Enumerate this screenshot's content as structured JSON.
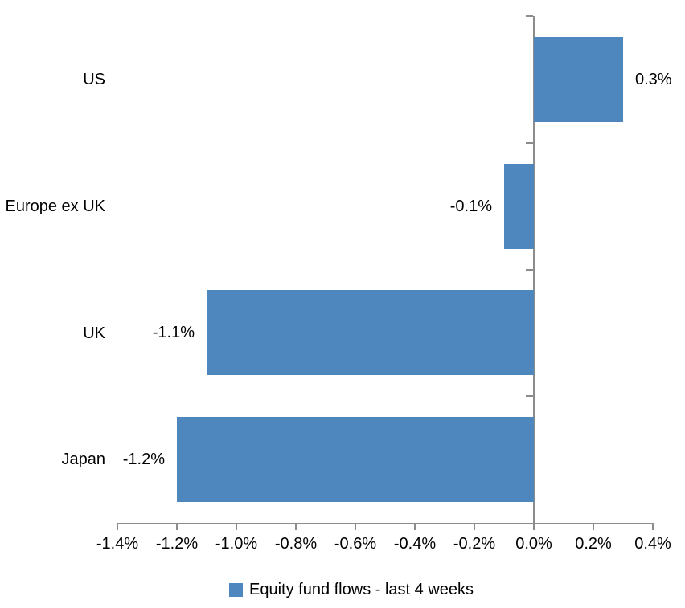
{
  "chart_data": {
    "type": "bar",
    "orientation": "horizontal",
    "title": "",
    "xlabel": "",
    "ylabel": "",
    "categories": [
      "US",
      "Europe ex UK",
      "UK",
      "Japan"
    ],
    "values": [
      0.3,
      -0.1,
      -1.1,
      -1.2
    ],
    "data_labels": [
      "0.3%",
      "-0.1%",
      "-1.1%",
      "-1.2%"
    ],
    "x_axis": {
      "min": -1.4,
      "max": 0.4,
      "step": 0.2,
      "tick_labels": [
        "-1.4%",
        "-1.2%",
        "-1.0%",
        "-0.8%",
        "-0.6%",
        "-0.4%",
        "-0.2%",
        "0.0%",
        "0.2%",
        "0.4%"
      ]
    },
    "grid": false,
    "legend": {
      "position": "bottom",
      "marker": "square",
      "label": "Equity fund flows - last 4 weeks"
    },
    "colors": {
      "bar": "#4E86BE",
      "axis": "#8C8C8C",
      "text": "#000000",
      "background": "#FFFFFF"
    }
  }
}
